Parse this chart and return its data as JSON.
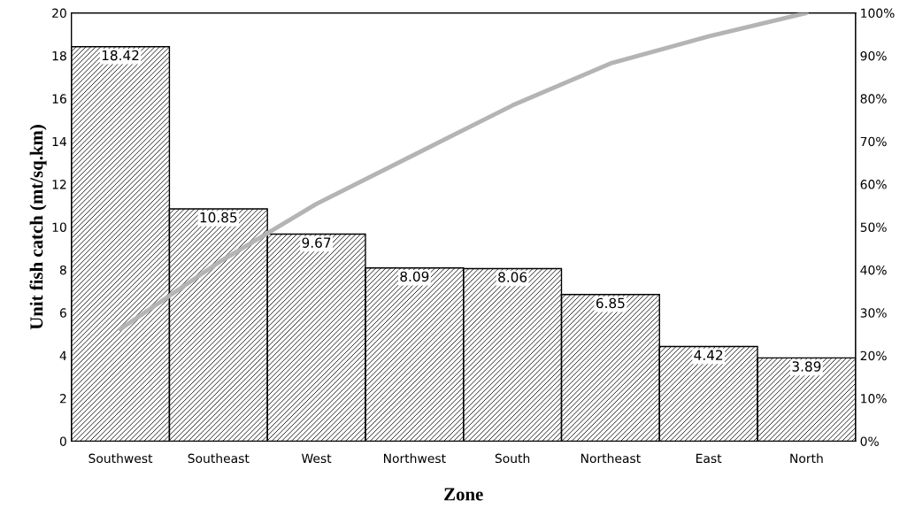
{
  "chart_data": {
    "type": "bar",
    "xlabel": "Zone",
    "ylabel": "Unit fish catch (mt/sq.km)",
    "categories": [
      "Southwest",
      "Southeast",
      "West",
      "Northwest",
      "South",
      "Northeast",
      "East",
      "North"
    ],
    "series": [
      {
        "color": "#000000",
        "values": [
          18.42,
          10.85,
          9.67,
          8.09,
          8.06,
          6.85,
          4.42,
          3.89
        ],
        "value_labels": [
          "18.42",
          "10.85",
          "9.67",
          "8.09",
          "8.06",
          "6.85",
          "4.42",
          "3.89"
        ]
      },
      {
        "type": "line",
        "axis": "y2",
        "color": "#b4b4b4",
        "values": [
          26.2,
          41.7,
          55.4,
          66.9,
          78.4,
          88.2,
          94.5,
          100
        ]
      }
    ],
    "ylim": [
      0,
      20
    ],
    "yticks": [
      0,
      2,
      4,
      6,
      8,
      10,
      12,
      14,
      16,
      18,
      20
    ],
    "y2lim": [
      0,
      100
    ],
    "y2ticks": [
      {
        "value": 0,
        "label": "0%"
      },
      {
        "value": 10,
        "label": "10%"
      },
      {
        "value": 20,
        "label": "20%"
      },
      {
        "value": 30,
        "label": "30%"
      },
      {
        "value": 40,
        "label": "40%"
      },
      {
        "value": 50,
        "label": "50%"
      },
      {
        "value": 60,
        "label": "60%"
      },
      {
        "value": 70,
        "label": "70%"
      },
      {
        "value": 80,
        "label": "80%"
      },
      {
        "value": 90,
        "label": "90%"
      },
      {
        "value": 100,
        "label": "100%"
      }
    ],
    "grid": false,
    "legend": false
  }
}
